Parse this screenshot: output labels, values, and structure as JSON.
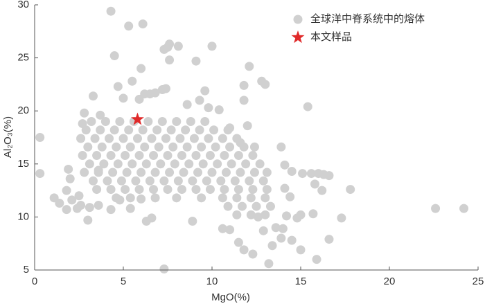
{
  "chart_data": {
    "type": "scatter",
    "xlabel": "MgO(%)",
    "ylabel": "Al₂O₃(%)",
    "xlim": [
      0,
      25
    ],
    "xticks": [
      0,
      5,
      10,
      15,
      20,
      25
    ],
    "ylim": [
      5,
      30
    ],
    "yticks": [
      5,
      10,
      15,
      20,
      25,
      30
    ],
    "grid": false,
    "legend": "upper right",
    "series": [
      {
        "name": "全球洋中脊系统中的熔体",
        "color": "#d0d0d0",
        "marker": "circle",
        "x": [
          0.3,
          0.3,
          1.1,
          1.4,
          1.8,
          1.8,
          1.9,
          2,
          2.1,
          2.4,
          2.5,
          2.7,
          2.8,
          3,
          3.3,
          4.3,
          4.5,
          5.3,
          6.1,
          6,
          7.2,
          7.3,
          7.5,
          7.6,
          7.6,
          8.1,
          9.1,
          10,
          9.6,
          11.8,
          12.1,
          11.8,
          12.8,
          13,
          15.4,
          15.1,
          15.6,
          15.8,
          16,
          16.3,
          16.6,
          16.2,
          17.8,
          17.3,
          15.7,
          16.6,
          15.9,
          15,
          13.2,
          7.3,
          22.6,
          24.2,
          14.1,
          14.5,
          14.4,
          14.2,
          14.8,
          15,
          14.5,
          13.9,
          13.4,
          12.3,
          11.8,
          11.5,
          10.6,
          11,
          12.6,
          12.9,
          13.6,
          14,
          14.1,
          13.9,
          12,
          11,
          11.6,
          10.4,
          9.8,
          9.3,
          8.6,
          8.9,
          6.6,
          6.3,
          6,
          5.4,
          4.8,
          4.3,
          3.6,
          3.1,
          2.6,
          3.6,
          5.5,
          4.7,
          3.7,
          5,
          5.9,
          6.2,
          6.5,
          6.8,
          7.4,
          3.2,
          4.0,
          4.8,
          5.6,
          6.4,
          7.2,
          8.0,
          8.8,
          9.6,
          2.9,
          3.7,
          4.5,
          5.3,
          6.1,
          6.9,
          7.7,
          8.5,
          9.3,
          10.1,
          10.9,
          2.6,
          3.4,
          4.2,
          5.0,
          5.8,
          6.6,
          7.4,
          8.2,
          9.0,
          9.8,
          10.6,
          11.4,
          3.0,
          3.8,
          4.6,
          5.4,
          6.2,
          7.0,
          7.8,
          8.6,
          9.4,
          10.2,
          11.0,
          11.8,
          12.4,
          2.7,
          3.5,
          4.3,
          5.1,
          5.9,
          6.7,
          7.5,
          8.3,
          9.1,
          9.9,
          10.7,
          11.5,
          12.3,
          3.1,
          3.9,
          4.7,
          5.5,
          6.3,
          7.1,
          7.9,
          8.7,
          9.5,
          10.3,
          11.1,
          11.9,
          12.7,
          2.8,
          3.6,
          4.4,
          5.2,
          6.0,
          6.8,
          7.6,
          8.4,
          9.2,
          10.0,
          10.8,
          11.6,
          12.4,
          13.1,
          3.3,
          4.1,
          4.9,
          5.7,
          6.5,
          7.3,
          8.1,
          8.9,
          9.7,
          10.5,
          11.3,
          12.1,
          12.9,
          3.5,
          4.3,
          5.1,
          5.9,
          6.7,
          7.5,
          8.3,
          9.1,
          9.9,
          10.7,
          11.5,
          12.3,
          13.1,
          4.6,
          5.4,
          6.8,
          8.0,
          9.4,
          10.6,
          11.4,
          12.2,
          13.0,
          10.9,
          11.7,
          12.5,
          13.3,
          11.4,
          12.2,
          13.0
        ],
        "y": [
          17.5,
          14.1,
          11.8,
          11.3,
          10.7,
          12.5,
          14.5,
          13.6,
          11.6,
          10.8,
          12,
          18.8,
          19.8,
          9.7,
          21.4,
          29.4,
          25.2,
          28,
          28.2,
          24,
          22,
          25.8,
          26,
          26.3,
          24.8,
          26.1,
          24.7,
          26.1,
          21.9,
          22.4,
          24.2,
          21,
          22.8,
          22.5,
          20.4,
          14.1,
          14.1,
          13.1,
          14.1,
          14,
          13.9,
          12.5,
          12.6,
          9.9,
          10.3,
          7.9,
          6,
          6.9,
          5.6,
          5.1,
          10.8,
          10.8,
          14.9,
          14.3,
          11.9,
          10.1,
          9.9,
          10.2,
          7.8,
          8,
          7.3,
          6.5,
          6.9,
          7.6,
          8.9,
          8.8,
          10,
          8.7,
          9,
          8.9,
          12.7,
          16.6,
          18.6,
          18.4,
          17,
          20.1,
          20.3,
          21,
          20.6,
          9.6,
          9.9,
          9.6,
          11.7,
          10.8,
          11.6,
          10.7,
          11.1,
          10.9,
          11.1,
          14.4,
          22.8,
          22.3,
          19.6,
          21.2,
          21.1,
          21.6,
          21.6,
          21.7,
          22.1,
          19.0,
          19.0,
          19.0,
          19.0,
          19.0,
          19.0,
          19.0,
          19.0,
          19.0,
          18.2,
          18.2,
          18.2,
          18.2,
          18.2,
          18.2,
          18.2,
          18.2,
          18.2,
          18.2,
          18.2,
          17.4,
          17.4,
          17.4,
          17.4,
          17.4,
          17.4,
          17.4,
          17.4,
          17.4,
          17.4,
          17.4,
          17.4,
          16.6,
          16.6,
          16.6,
          16.6,
          16.6,
          16.6,
          16.6,
          16.6,
          16.6,
          16.6,
          16.6,
          16.6,
          16.6,
          15.8,
          15.8,
          15.8,
          15.8,
          15.8,
          15.8,
          15.8,
          15.8,
          15.8,
          15.8,
          15.8,
          15.8,
          15.8,
          15.0,
          15.0,
          15.0,
          15.0,
          15.0,
          15.0,
          15.0,
          15.0,
          15.0,
          15.0,
          15.0,
          15.0,
          15.0,
          14.2,
          14.2,
          14.2,
          14.2,
          14.2,
          14.2,
          14.2,
          14.2,
          14.2,
          14.2,
          14.2,
          14.2,
          14.2,
          14.2,
          13.4,
          13.4,
          13.4,
          13.4,
          13.4,
          13.4,
          13.4,
          13.4,
          13.4,
          13.4,
          13.4,
          13.4,
          13.4,
          12.6,
          12.6,
          12.6,
          12.6,
          12.6,
          12.6,
          12.6,
          12.6,
          12.6,
          12.6,
          12.6,
          12.6,
          12.6,
          11.8,
          11.8,
          11.8,
          11.8,
          11.8,
          11.8,
          11.8,
          11.8,
          11.8,
          11.0,
          11.0,
          11.0,
          11.0,
          10.2,
          10.2,
          10.2
        ]
      },
      {
        "name": "本文样品",
        "color": "#e02a2a",
        "marker": "star",
        "x": [
          5.8
        ],
        "y": [
          19.2
        ]
      }
    ]
  }
}
